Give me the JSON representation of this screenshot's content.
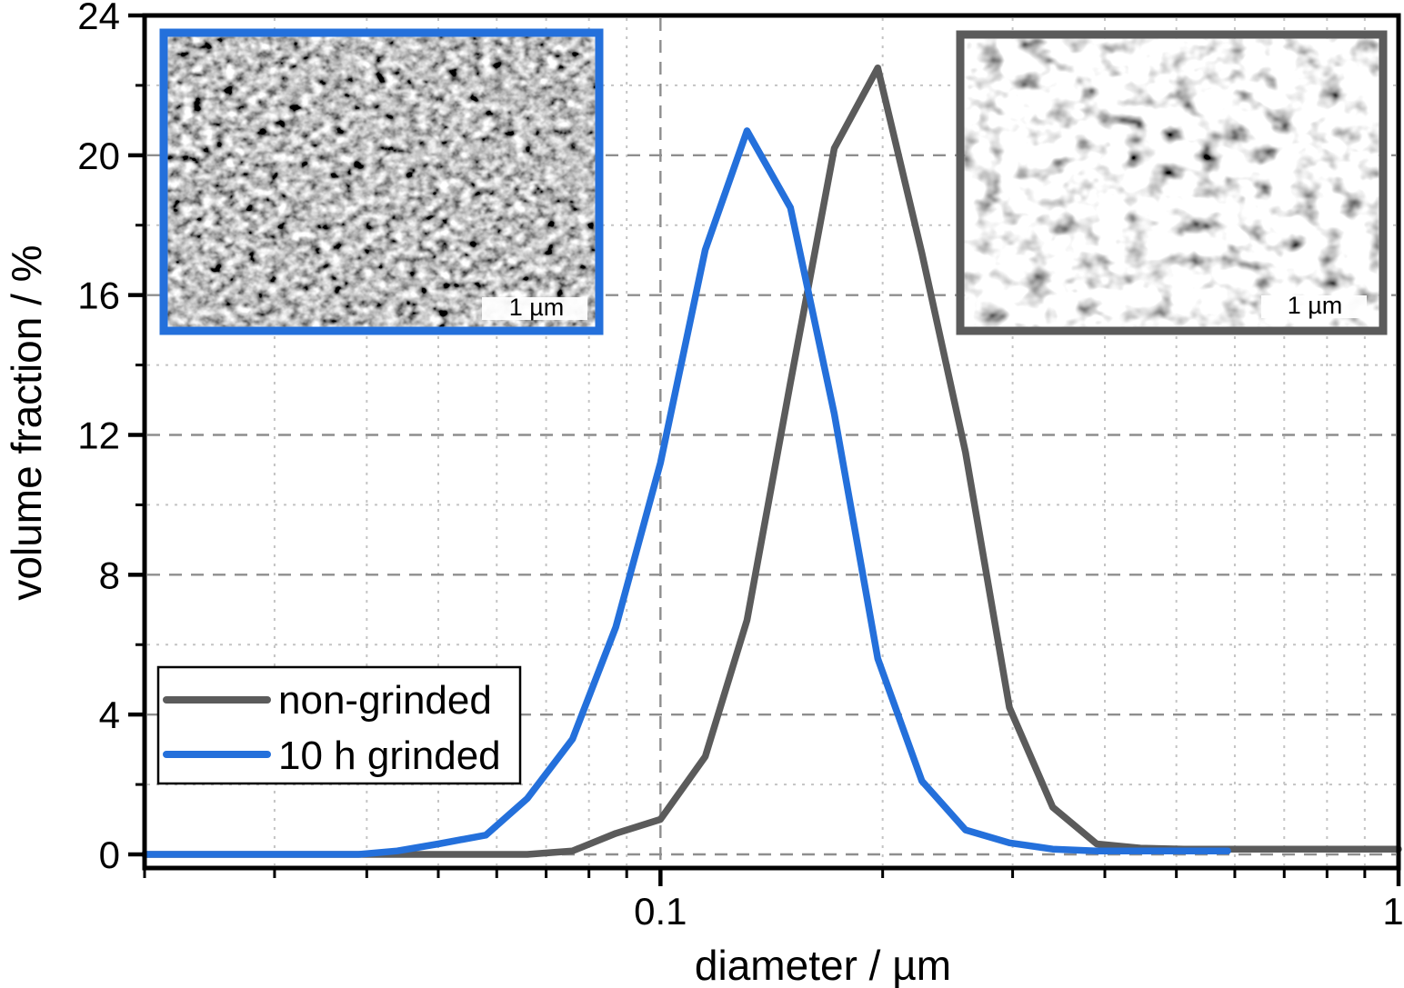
{
  "figure": {
    "background": "#ffffff",
    "description": "Particle size distribution plot with two SEM inset micrographs"
  },
  "axes": {
    "x": {
      "title": "diameter / µm",
      "scale": "log",
      "min": 0.02,
      "max": 1,
      "major_ticks": [
        {
          "value": 0.1,
          "label": "0.1"
        },
        {
          "value": 1,
          "label": "1"
        }
      ],
      "minor_ticks": [
        0.02,
        0.03,
        0.04,
        0.05,
        0.06,
        0.07,
        0.08,
        0.09,
        0.2,
        0.3,
        0.4,
        0.5,
        0.6,
        0.7,
        0.8,
        0.9
      ],
      "major_gridlines": [
        0.1
      ],
      "minor_gridlines": [
        0.03,
        0.04,
        0.05,
        0.06,
        0.07,
        0.08,
        0.09,
        0.2,
        0.3,
        0.4,
        0.5,
        0.6,
        0.7,
        0.8,
        0.9
      ]
    },
    "y": {
      "title": "volume fraction / %",
      "min": 0,
      "max": 24,
      "major_ticks": [
        {
          "value": 0,
          "label": "0"
        },
        {
          "value": 4,
          "label": "4"
        },
        {
          "value": 8,
          "label": "8"
        },
        {
          "value": 12,
          "label": "12"
        },
        {
          "value": 16,
          "label": "16"
        },
        {
          "value": 20,
          "label": "20"
        },
        {
          "value": 24,
          "label": "24"
        }
      ],
      "minor_ticks": [
        2,
        6,
        10,
        14,
        18,
        22
      ],
      "major_gridlines": [
        0,
        4,
        8,
        12,
        16,
        20
      ],
      "minor_gridlines": [
        2,
        6,
        10,
        14,
        18,
        22
      ]
    }
  },
  "legend": {
    "position": "lower-left",
    "items": [
      {
        "label": "non-grinded",
        "color": "#5b5b5b"
      },
      {
        "label": "10 h grinded",
        "color": "#2470db"
      }
    ]
  },
  "chart_data": {
    "type": "line",
    "title": "",
    "xlabel": "diameter / µm",
    "ylabel": "volume fraction / %",
    "x_scale": "log",
    "xlim": [
      0.02,
      1
    ],
    "ylim": [
      0,
      24
    ],
    "grid": "major dashed + minor dotted, both axes",
    "legend_position": "lower-left",
    "series": [
      {
        "name": "non-grinded",
        "color": "#5b5b5b",
        "points": [
          [
            0.02,
            0
          ],
          [
            0.03,
            0
          ],
          [
            0.04,
            0
          ],
          [
            0.05,
            0
          ],
          [
            0.058,
            0
          ],
          [
            0.066,
            0
          ],
          [
            0.076,
            0.1
          ],
          [
            0.087,
            0.6
          ],
          [
            0.1,
            1.0
          ],
          [
            0.115,
            2.8
          ],
          [
            0.131,
            6.7
          ],
          [
            0.15,
            13.5
          ],
          [
            0.172,
            20.2
          ],
          [
            0.197,
            22.5
          ],
          [
            0.226,
            17.2
          ],
          [
            0.259,
            11.5
          ],
          [
            0.297,
            4.2
          ],
          [
            0.34,
            1.35
          ],
          [
            0.39,
            0.3
          ],
          [
            0.447,
            0.18
          ],
          [
            0.512,
            0.15
          ],
          [
            0.587,
            0.15
          ],
          [
            0.7,
            0.15
          ],
          [
            0.85,
            0.15
          ],
          [
            1.0,
            0.15
          ]
        ]
      },
      {
        "name": "10 h grinded",
        "color": "#2470db",
        "points": [
          [
            0.02,
            0
          ],
          [
            0.03,
            0
          ],
          [
            0.039,
            0
          ],
          [
            0.044,
            0.1
          ],
          [
            0.05,
            0.3
          ],
          [
            0.058,
            0.55
          ],
          [
            0.066,
            1.6
          ],
          [
            0.076,
            3.3
          ],
          [
            0.087,
            6.5
          ],
          [
            0.1,
            11.2
          ],
          [
            0.115,
            17.3
          ],
          [
            0.131,
            20.7
          ],
          [
            0.15,
            18.5
          ],
          [
            0.172,
            12.6
          ],
          [
            0.197,
            5.6
          ],
          [
            0.226,
            2.1
          ],
          [
            0.259,
            0.7
          ],
          [
            0.297,
            0.33
          ],
          [
            0.34,
            0.15
          ],
          [
            0.39,
            0.1
          ],
          [
            0.447,
            0.1
          ],
          [
            0.512,
            0.1
          ],
          [
            0.587,
            0.1
          ]
        ]
      }
    ]
  },
  "insets": [
    {
      "name": "sem-image-10h-grinded",
      "border_color": "#2470db",
      "scale_label": "1 µm"
    },
    {
      "name": "sem-image-non-grinded",
      "border_color": "#5b5b5b",
      "scale_label": "1 µm"
    }
  ]
}
